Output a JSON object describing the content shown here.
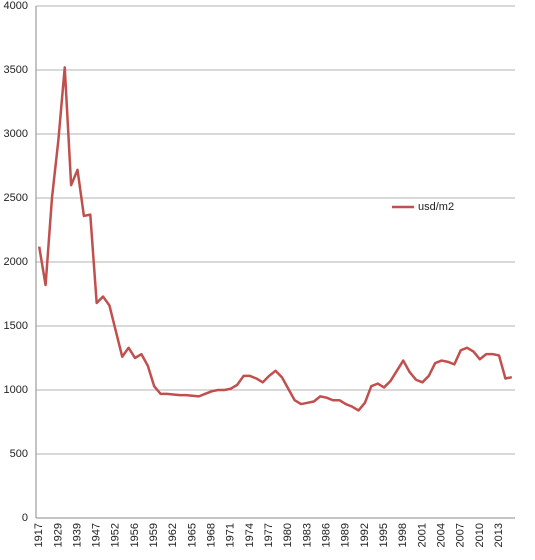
{
  "chart_data": {
    "type": "line",
    "categories": [
      "1917",
      null,
      null,
      "1929",
      null,
      null,
      "1939",
      null,
      null,
      "1947",
      null,
      null,
      "1952",
      null,
      null,
      "1956",
      null,
      null,
      "1959",
      null,
      null,
      "1962",
      null,
      null,
      "1965",
      null,
      null,
      "1968",
      null,
      null,
      "1971",
      null,
      null,
      "1974",
      null,
      null,
      "1977",
      null,
      null,
      "1980",
      null,
      null,
      "1983",
      null,
      null,
      "1986",
      null,
      null,
      "1989",
      null,
      null,
      "1992",
      null,
      null,
      "1995",
      null,
      null,
      "1998",
      null,
      null,
      "2001",
      null,
      null,
      "2004",
      null,
      null,
      "2007",
      null,
      null,
      "2010",
      null,
      null,
      "2013",
      null,
      null
    ],
    "series": [
      {
        "name": "usd/m2",
        "color": "#c0504d",
        "values": [
          2120,
          1820,
          2500,
          2950,
          3520,
          2600,
          2720,
          2360,
          2370,
          1680,
          1730,
          1660,
          1460,
          1260,
          1330,
          1250,
          1280,
          1190,
          1030,
          970,
          970,
          965,
          960,
          960,
          955,
          950,
          970,
          990,
          1000,
          1000,
          1010,
          1040,
          1110,
          1110,
          1090,
          1060,
          1110,
          1150,
          1100,
          1010,
          920,
          890,
          900,
          910,
          950,
          940,
          920,
          920,
          890,
          870,
          840,
          900,
          1030,
          1050,
          1020,
          1070,
          1150,
          1230,
          1140,
          1080,
          1060,
          1110,
          1210,
          1230,
          1220,
          1200,
          1310,
          1330,
          1300,
          1240,
          1280,
          1280,
          1270,
          1090,
          1100
        ]
      }
    ],
    "ylim": [
      0,
      4000
    ],
    "yticks": [
      0,
      500,
      1000,
      1500,
      2000,
      2500,
      3000,
      3500,
      4000
    ],
    "grid": true,
    "legend": "right"
  }
}
